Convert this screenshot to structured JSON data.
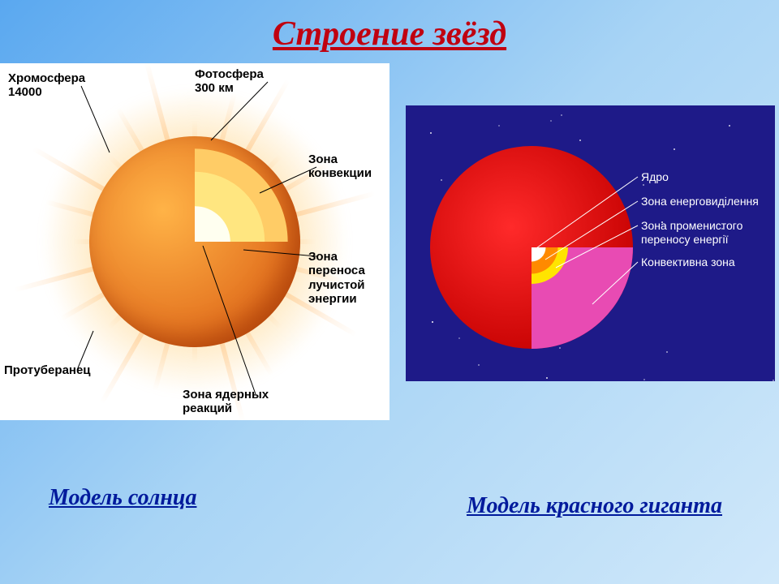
{
  "title": {
    "text": "Строение звёзд",
    "color": "#c00010",
    "fontsize": 42
  },
  "caption_left": {
    "text": "Модель  солнца",
    "color": "#001a9c",
    "fontsize": 28
  },
  "caption_right": {
    "text": "Модель красного гиганта",
    "color": "#001a9c",
    "fontsize": 28
  },
  "sun": {
    "panel_bg": "#ffffff",
    "surface_color_outer": "#e06a1a",
    "surface_color_inner": "#ffb347",
    "flare_color": "#ffb060",
    "layers": {
      "convection": {
        "color": "#ffcc66",
        "diameter_pct": 88
      },
      "radiative": {
        "color": "#ffe680",
        "diameter_pct": 66
      },
      "core": {
        "color": "#fffff0",
        "diameter_pct": 34
      }
    },
    "labels": {
      "chromosphere": "Хромосфера\n14000",
      "photosphere": "Фотосфера\n300 км",
      "convection": "Зона\nконвекции",
      "radiative": "Зона\nпереноса\nлучистой\nэнергии",
      "core_zone": "Зона ядерных\nреакций",
      "prominence": "Протуберанец"
    },
    "label_fontsize": 15,
    "label_color": "#000000",
    "leader_color": "#000000"
  },
  "giant": {
    "panel_bg": "#1e1a88",
    "surface_color": "#e00000",
    "layers": {
      "convective": {
        "color": "#e84bb3",
        "diameter_pct": 100
      },
      "radiative": {
        "color": "#ffe400",
        "diameter_pct": 36
      },
      "energy": {
        "color": "#ff8a00",
        "diameter_pct": 26
      },
      "core": {
        "color": "#ffffff",
        "diameter_pct": 14
      }
    },
    "labels": {
      "core": "Ядро",
      "energy": "Зона енерговиділення",
      "radiative": "Зона променистого\nпереносу енергії",
      "convective": "Конвективна зона"
    },
    "label_fontsize": 14,
    "label_color": "#ffffff",
    "leader_color": "#ffffff",
    "star_count": 25
  }
}
